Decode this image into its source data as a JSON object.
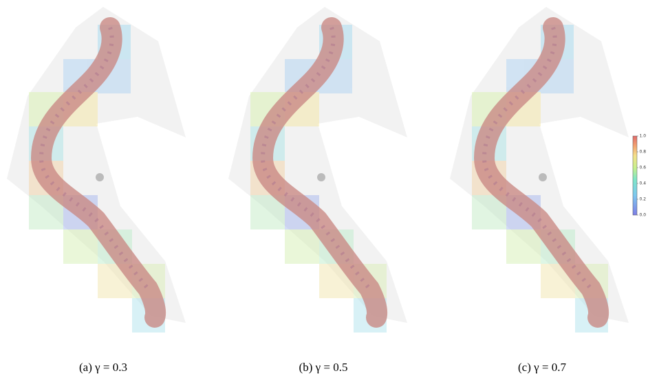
{
  "figure": {
    "captions": [
      "(a) γ = 0.3",
      "(b) γ = 0.5",
      "(c) γ = 0.7"
    ],
    "colorbar": {
      "lim": [
        0,
        1
      ],
      "ticks": [
        {
          "value": 0,
          "label": "0.0"
        },
        {
          "value": 0.2,
          "label": "0.2"
        },
        {
          "value": 0.4,
          "label": "0.4"
        },
        {
          "value": 0.6,
          "label": "0.6"
        },
        {
          "value": 0.8,
          "label": "0.8"
        },
        {
          "value": 1,
          "label": "1.0"
        }
      ]
    }
  }
}
